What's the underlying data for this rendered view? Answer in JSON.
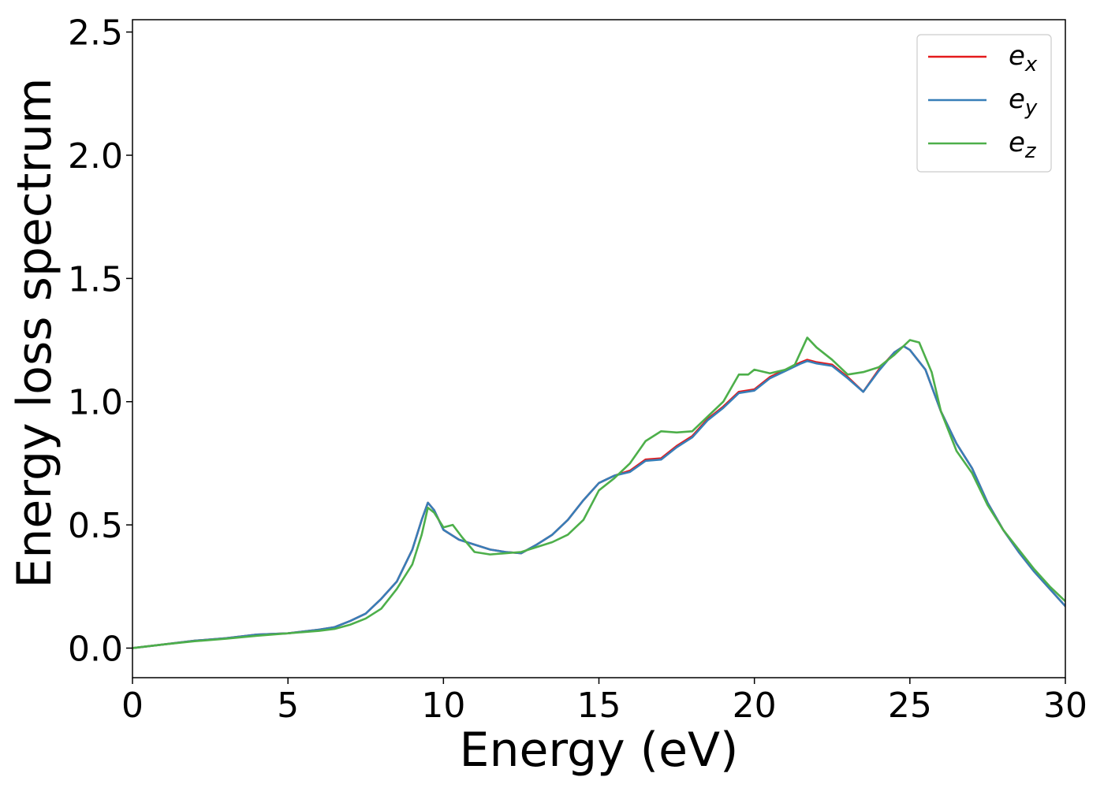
{
  "chart_data": {
    "type": "line",
    "title": "",
    "xlabel": "Energy (eV)",
    "ylabel": "Energy loss spectrum",
    "xlim": [
      0,
      30
    ],
    "ylim": [
      -0.12,
      2.55
    ],
    "xticks": [
      "0",
      "5",
      "10",
      "15",
      "20",
      "25",
      "30"
    ],
    "yticks": [
      "0.0",
      "0.5",
      "1.0",
      "1.5",
      "2.0",
      "2.5"
    ],
    "grid": false,
    "legend_position": "top-right",
    "series": [
      {
        "name": "e_x",
        "name_base": "e",
        "name_sub": "x",
        "color": "#e41a1c",
        "x": [
          0,
          1,
          2,
          3,
          4,
          5,
          6,
          6.5,
          7,
          7.5,
          8,
          8.5,
          9,
          9.3,
          9.5,
          9.7,
          10,
          10.5,
          11,
          11.5,
          12,
          12.5,
          13,
          13.5,
          14,
          14.5,
          15,
          15.5,
          16,
          16.5,
          17,
          17.5,
          18,
          18.5,
          19,
          19.5,
          20,
          20.5,
          21,
          21.5,
          21.7,
          22,
          22.5,
          23,
          23.5,
          24,
          24.5,
          24.8,
          25,
          25.5,
          26,
          26.5,
          27,
          27.5,
          28,
          28.5,
          29,
          29.5,
          30
        ],
        "values": [
          0.0,
          0.015,
          0.03,
          0.04,
          0.055,
          0.06,
          0.075,
          0.085,
          0.11,
          0.14,
          0.2,
          0.27,
          0.4,
          0.52,
          0.59,
          0.56,
          0.48,
          0.44,
          0.42,
          0.4,
          0.39,
          0.385,
          0.42,
          0.46,
          0.52,
          0.6,
          0.67,
          0.7,
          0.72,
          0.765,
          0.77,
          0.82,
          0.86,
          0.93,
          0.98,
          1.04,
          1.05,
          1.1,
          1.13,
          1.16,
          1.17,
          1.16,
          1.15,
          1.1,
          1.04,
          1.13,
          1.2,
          1.225,
          1.21,
          1.13,
          0.96,
          0.83,
          0.73,
          0.59,
          0.48,
          0.39,
          0.31,
          0.24,
          0.17
        ]
      },
      {
        "name": "e_y",
        "name_base": "e",
        "name_sub": "y",
        "color": "#377eb8",
        "x": [
          0,
          1,
          2,
          3,
          4,
          5,
          6,
          6.5,
          7,
          7.5,
          8,
          8.5,
          9,
          9.3,
          9.5,
          9.7,
          10,
          10.5,
          11,
          11.5,
          12,
          12.5,
          13,
          13.5,
          14,
          14.5,
          15,
          15.5,
          16,
          16.5,
          17,
          17.5,
          18,
          18.5,
          19,
          19.5,
          20,
          20.5,
          21,
          21.5,
          21.7,
          22,
          22.5,
          23,
          23.5,
          24,
          24.5,
          24.8,
          25,
          25.5,
          26,
          26.5,
          27,
          27.5,
          28,
          28.5,
          29,
          29.5,
          30
        ],
        "values": [
          0.0,
          0.015,
          0.03,
          0.04,
          0.055,
          0.06,
          0.075,
          0.085,
          0.11,
          0.14,
          0.2,
          0.27,
          0.4,
          0.52,
          0.59,
          0.56,
          0.48,
          0.44,
          0.42,
          0.4,
          0.39,
          0.385,
          0.42,
          0.46,
          0.52,
          0.6,
          0.67,
          0.7,
          0.715,
          0.76,
          0.765,
          0.815,
          0.855,
          0.925,
          0.975,
          1.035,
          1.045,
          1.095,
          1.125,
          1.155,
          1.165,
          1.155,
          1.145,
          1.095,
          1.04,
          1.125,
          1.2,
          1.225,
          1.21,
          1.13,
          0.96,
          0.83,
          0.73,
          0.59,
          0.48,
          0.39,
          0.31,
          0.24,
          0.17
        ]
      },
      {
        "name": "e_z",
        "name_base": "e",
        "name_sub": "z",
        "color": "#4daf4a",
        "x": [
          0,
          1,
          2,
          3,
          4,
          5,
          6,
          6.5,
          7,
          7.5,
          8,
          8.5,
          9,
          9.3,
          9.5,
          9.7,
          10,
          10.3,
          10.6,
          11,
          11.5,
          12,
          12.5,
          13,
          13.5,
          14,
          14.5,
          15,
          15.5,
          16,
          16.5,
          17,
          17.5,
          18,
          18.5,
          19,
          19.5,
          19.8,
          20,
          20.5,
          21,
          21.3,
          21.7,
          22,
          22.5,
          23,
          23.5,
          24,
          24.5,
          25,
          25.3,
          25.7,
          26,
          26.5,
          27,
          27.5,
          28,
          28.5,
          29,
          29.5,
          30
        ],
        "values": [
          0.0,
          0.015,
          0.028,
          0.038,
          0.05,
          0.06,
          0.07,
          0.078,
          0.095,
          0.12,
          0.16,
          0.24,
          0.34,
          0.46,
          0.57,
          0.55,
          0.49,
          0.5,
          0.45,
          0.39,
          0.38,
          0.385,
          0.39,
          0.41,
          0.43,
          0.46,
          0.52,
          0.64,
          0.69,
          0.75,
          0.84,
          0.88,
          0.875,
          0.88,
          0.94,
          1.0,
          1.11,
          1.11,
          1.13,
          1.115,
          1.13,
          1.15,
          1.26,
          1.22,
          1.17,
          1.11,
          1.12,
          1.14,
          1.19,
          1.25,
          1.24,
          1.12,
          0.96,
          0.8,
          0.71,
          0.58,
          0.48,
          0.4,
          0.32,
          0.25,
          0.19
        ]
      }
    ]
  }
}
